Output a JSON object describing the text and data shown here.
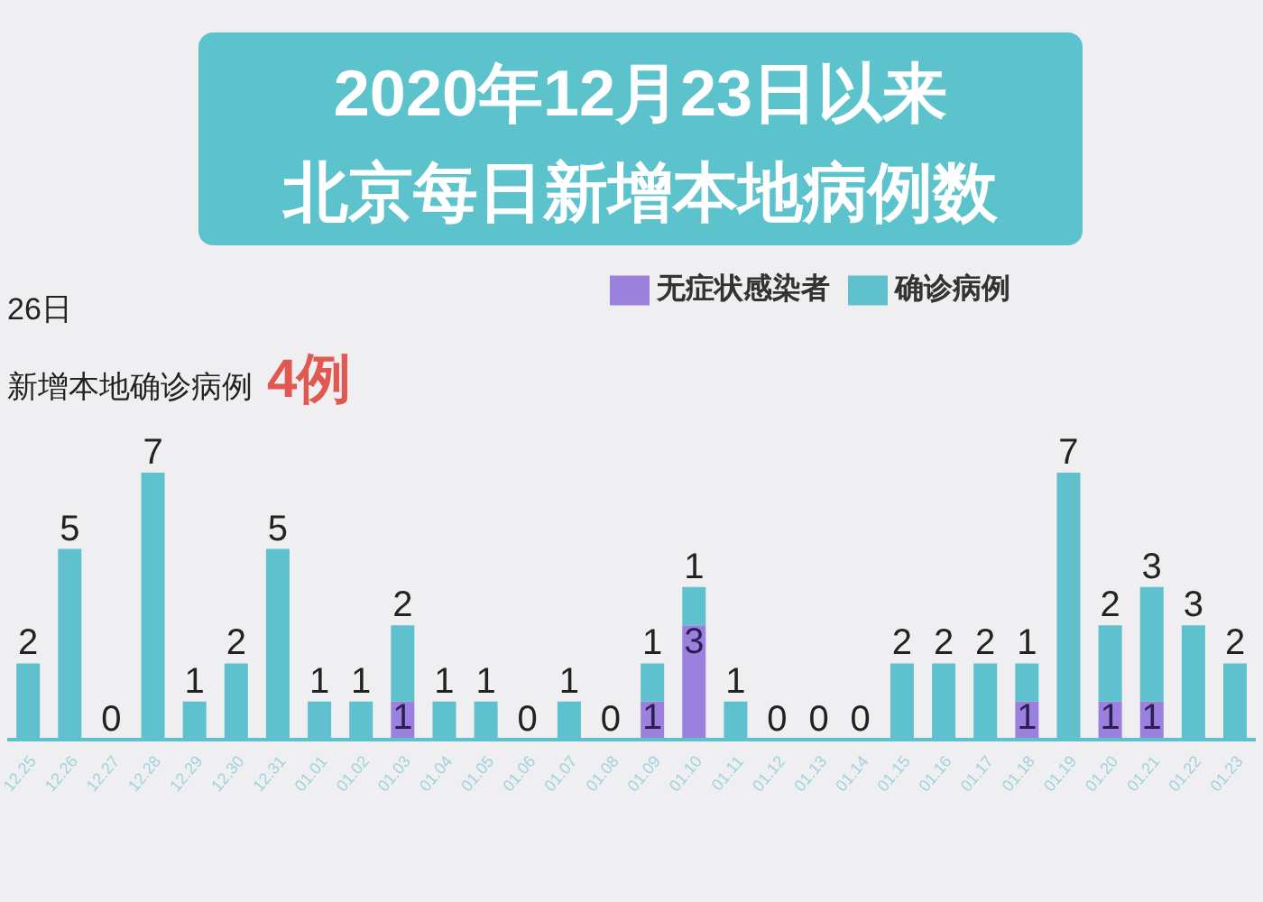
{
  "chart_data": {
    "type": "bar",
    "title": "2020年12月23日以来",
    "subtitle": "北京每日新增本地病例数",
    "annotations": [
      "26日",
      "新增本地确诊病例",
      "4例"
    ],
    "categories": [
      "12.25",
      "12.26",
      "12.27",
      "12.28",
      "12.29",
      "12.30",
      "12.31",
      "01.01",
      "01.02",
      "01.03",
      "01.04",
      "01.05",
      "01.06",
      "01.07",
      "01.08",
      "01.09",
      "01.10",
      "01.11",
      "01.12",
      "01.13",
      "01.14",
      "01.15",
      "01.16",
      "01.17",
      "01.18",
      "01.19",
      "01.20",
      "01.21",
      "01.22",
      "01.23"
    ],
    "stacked": true,
    "legend": "top right",
    "grid": false,
    "tick_labels": "x",
    "series": [
      {
        "name": "无症状感染者",
        "color": "#9b80de",
        "values": [
          0,
          0,
          0,
          0,
          0,
          0,
          0,
          0,
          0,
          1,
          0,
          0,
          0,
          0,
          0,
          1,
          3,
          0,
          0,
          0,
          0,
          0,
          0,
          0,
          1,
          0,
          1,
          1,
          0,
          0
        ],
        "value_labels": [
          null,
          null,
          null,
          null,
          null,
          null,
          null,
          null,
          null,
          "1",
          null,
          null,
          null,
          null,
          null,
          "1",
          "3",
          null,
          null,
          null,
          null,
          null,
          null,
          null,
          "1",
          null,
          "1",
          "1",
          null,
          null
        ]
      },
      {
        "name": "确诊病例",
        "color": "#5ec1cd",
        "values": [
          2,
          5,
          0,
          7,
          1,
          2,
          5,
          1,
          1,
          2,
          1,
          1,
          0,
          1,
          0,
          1,
          1,
          1,
          0,
          0,
          0,
          2,
          2,
          2,
          1,
          7,
          2,
          3,
          3,
          2
        ],
        "value_labels": [
          "2",
          "5",
          "0",
          "7",
          "1",
          "2",
          "5",
          "1",
          "1",
          "2",
          "1",
          "1",
          "0",
          "1",
          "0",
          "1",
          "1",
          "1",
          "0",
          "0",
          "0",
          "2",
          "2",
          "2",
          "1",
          "7",
          "2",
          "3",
          "3",
          "2"
        ]
      }
    ]
  }
}
